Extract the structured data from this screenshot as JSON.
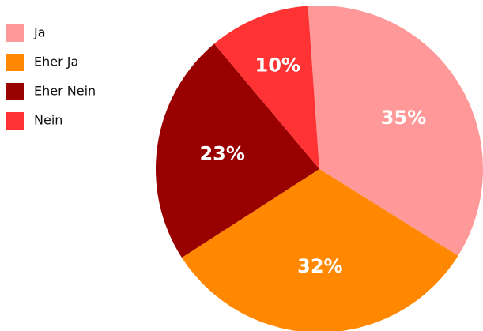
{
  "chart_data": {
    "type": "pie",
    "categories": [
      "Ja",
      "Eher Ja",
      "Eher Nein",
      "Nein"
    ],
    "values": [
      35,
      32,
      23,
      10
    ],
    "value_labels": [
      "35%",
      "32%",
      "23%",
      "10%"
    ],
    "colors": [
      "#ff9999",
      "#ff8800",
      "#990000",
      "#ff3333"
    ],
    "legend": "top-left"
  }
}
